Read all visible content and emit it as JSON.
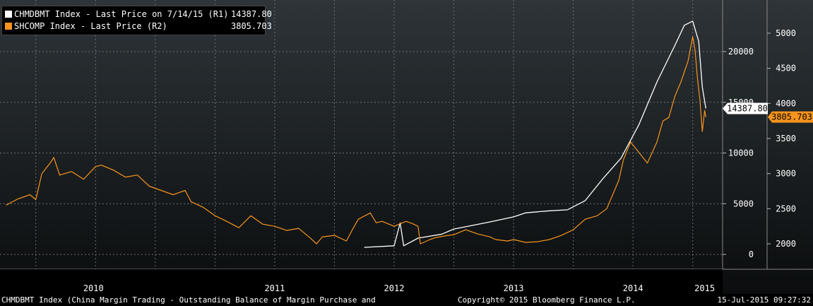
{
  "legend": {
    "series1": {
      "label": "CHMDBMT Index - Last Price on 7/14/15 (R1)",
      "value": "14387.80",
      "color": "#ffffff"
    },
    "series2": {
      "label": "SHCOMP Index - Last Price (R2)",
      "value": "3805.703",
      "color": "#f7941d"
    }
  },
  "footer": {
    "left": "CHMDBMT Index (China Margin Trading - Outstanding Balance of Margin Purchase and",
    "middle": "Copyright© 2015 Bloomberg Finance L.P.",
    "right": "15-Jul-2015 09:27:32"
  },
  "chart_data": {
    "type": "line",
    "x_axis": {
      "labels": [
        "2010",
        "2011",
        "2012",
        "2013",
        "2014",
        "2015"
      ]
    },
    "axes": {
      "R1": {
        "ticks": [
          0,
          5000,
          10000,
          15000,
          20000
        ],
        "range": [
          0,
          23000
        ]
      },
      "R2": {
        "ticks": [
          2000,
          2500,
          3000,
          3500,
          4000,
          4500,
          5000
        ],
        "range": [
          1900,
          5200
        ]
      }
    },
    "last_value_labels": {
      "R1": "14387.80",
      "R2": "3805.703"
    },
    "grid": true,
    "legend_position": "top-left",
    "series": [
      {
        "name": "CHMDBMT Index - Last Price on 7/14/15 (R1)",
        "axis": "R1",
        "color": "#ffffff",
        "points": [
          [
            2012.25,
            700
          ],
          [
            2012.5,
            850
          ],
          [
            2012.55,
            3100
          ],
          [
            2012.58,
            850
          ],
          [
            2012.7,
            1600
          ],
          [
            2012.9,
            2000
          ],
          [
            2013.0,
            2500
          ],
          [
            2013.3,
            3200
          ],
          [
            2013.5,
            3700
          ],
          [
            2013.6,
            4100
          ],
          [
            2013.8,
            4300
          ],
          [
            2013.95,
            4400
          ],
          [
            2014.1,
            5300
          ],
          [
            2014.25,
            7500
          ],
          [
            2014.4,
            9500
          ],
          [
            2014.55,
            12800
          ],
          [
            2014.7,
            17000
          ],
          [
            2014.85,
            20600
          ],
          [
            2014.93,
            22600
          ],
          [
            2015.0,
            23000
          ],
          [
            2015.05,
            21000
          ],
          [
            2015.08,
            16500
          ],
          [
            2015.11,
            14387.8
          ]
        ]
      },
      {
        "name": "SHCOMP Index - Last Price (R2)",
        "axis": "R2",
        "color": "#f7941d",
        "points": [
          [
            2009.25,
            2550
          ],
          [
            2009.35,
            2640
          ],
          [
            2009.45,
            2700
          ],
          [
            2009.5,
            2630
          ],
          [
            2009.55,
            3000
          ],
          [
            2009.62,
            3150
          ],
          [
            2009.65,
            3230
          ],
          [
            2009.7,
            2980
          ],
          [
            2009.8,
            3030
          ],
          [
            2009.9,
            2920
          ],
          [
            2010.0,
            3100
          ],
          [
            2010.05,
            3120
          ],
          [
            2010.15,
            3050
          ],
          [
            2010.25,
            2950
          ],
          [
            2010.35,
            2980
          ],
          [
            2010.45,
            2820
          ],
          [
            2010.55,
            2760
          ],
          [
            2010.65,
            2700
          ],
          [
            2010.75,
            2760
          ],
          [
            2010.8,
            2600
          ],
          [
            2010.9,
            2520
          ],
          [
            2011.0,
            2400
          ],
          [
            2011.05,
            2360
          ],
          [
            2011.12,
            2300
          ],
          [
            2011.2,
            2230
          ],
          [
            2011.3,
            2400
          ],
          [
            2011.4,
            2280
          ],
          [
            2011.5,
            2250
          ],
          [
            2011.6,
            2190
          ],
          [
            2011.7,
            2220
          ],
          [
            2011.8,
            2080
          ],
          [
            2011.85,
            2000
          ],
          [
            2011.9,
            2100
          ],
          [
            2012.0,
            2120
          ],
          [
            2012.1,
            2040
          ],
          [
            2012.15,
            2200
          ],
          [
            2012.2,
            2350
          ],
          [
            2012.3,
            2440
          ],
          [
            2012.35,
            2300
          ],
          [
            2012.4,
            2320
          ],
          [
            2012.5,
            2250
          ],
          [
            2012.6,
            2320
          ],
          [
            2012.65,
            2290
          ],
          [
            2012.7,
            2250
          ],
          [
            2012.72,
            2000
          ],
          [
            2012.8,
            2060
          ],
          [
            2012.85,
            2090
          ],
          [
            2012.95,
            2120
          ],
          [
            2013.0,
            2130
          ],
          [
            2013.1,
            2200
          ],
          [
            2013.2,
            2140
          ],
          [
            2013.3,
            2100
          ],
          [
            2013.35,
            2060
          ],
          [
            2013.45,
            2040
          ],
          [
            2013.5,
            2060
          ],
          [
            2013.6,
            2020
          ],
          [
            2013.7,
            2030
          ],
          [
            2013.8,
            2060
          ],
          [
            2013.9,
            2120
          ],
          [
            2014.0,
            2200
          ],
          [
            2014.1,
            2350
          ],
          [
            2014.2,
            2400
          ],
          [
            2014.28,
            2500
          ],
          [
            2014.33,
            2700
          ],
          [
            2014.38,
            2900
          ],
          [
            2014.42,
            3200
          ],
          [
            2014.48,
            3450
          ],
          [
            2014.55,
            3300
          ],
          [
            2014.62,
            3150
          ],
          [
            2014.7,
            3450
          ],
          [
            2014.75,
            3750
          ],
          [
            2014.8,
            3800
          ],
          [
            2014.85,
            4100
          ],
          [
            2014.9,
            4300
          ],
          [
            2014.96,
            4600
          ],
          [
            2015.0,
            4950
          ],
          [
            2015.02,
            4750
          ],
          [
            2015.04,
            4350
          ],
          [
            2015.06,
            4050
          ],
          [
            2015.08,
            3600
          ],
          [
            2015.1,
            3900
          ],
          [
            2015.11,
            3805.703
          ]
        ]
      }
    ]
  }
}
